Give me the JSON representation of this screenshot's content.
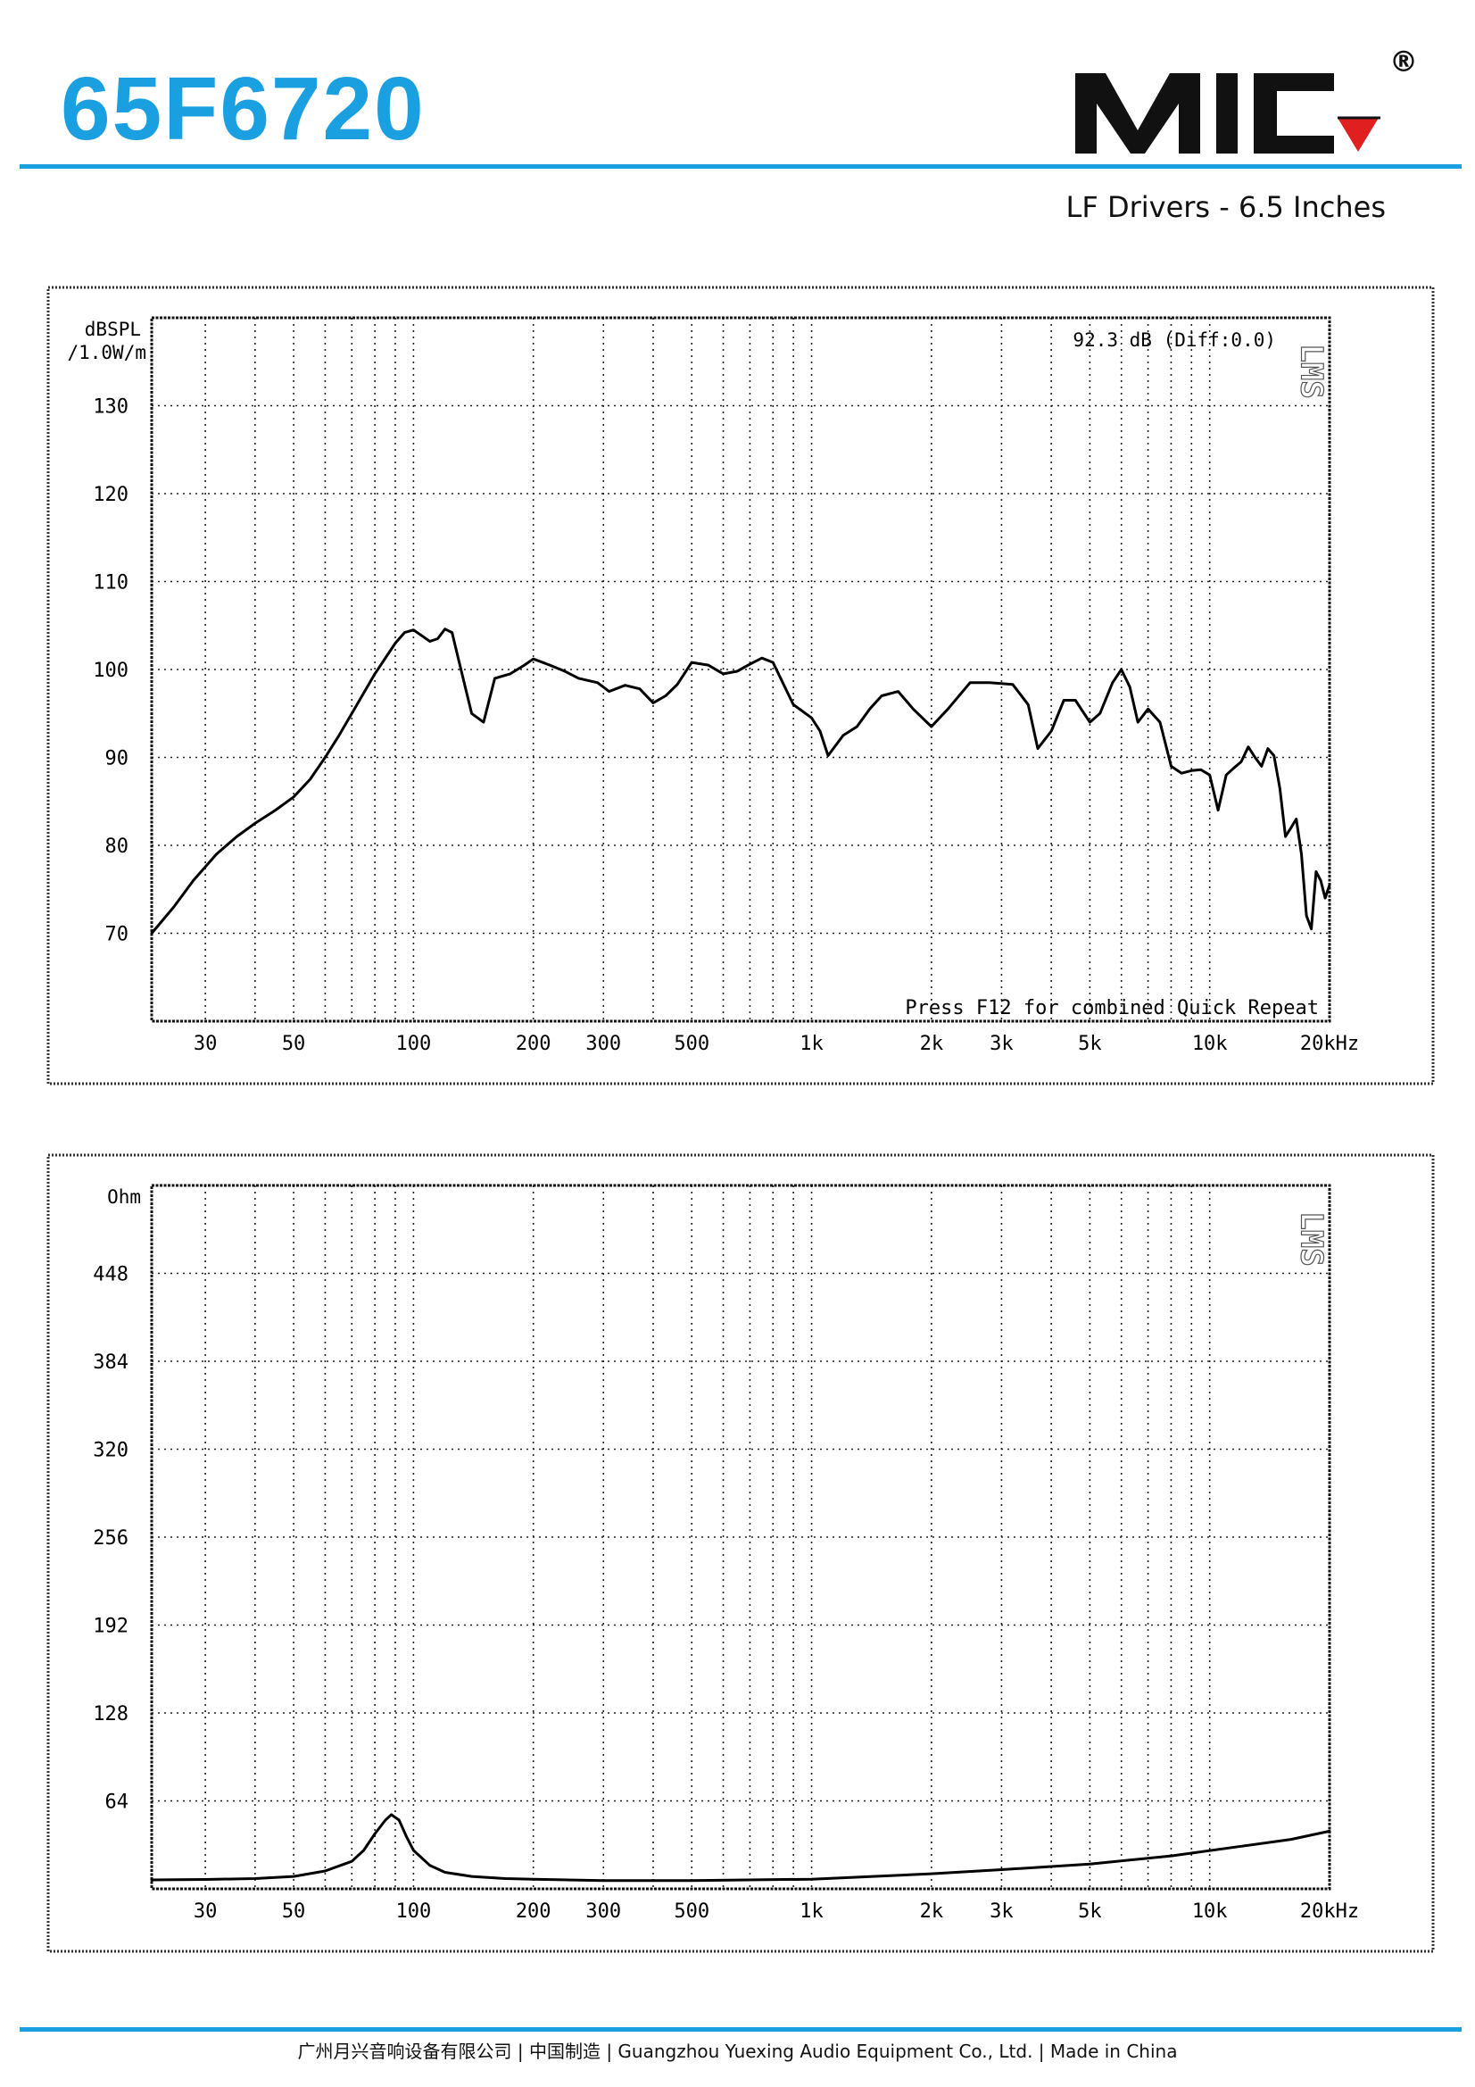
{
  "header": {
    "model": "65F6720",
    "subtitle": "LF Drivers - 6.5 Inches",
    "accent_color": "#1a9fe0",
    "logo": {
      "text": "MIC",
      "registered": "®",
      "accent_color": "#e02020"
    }
  },
  "footer": {
    "text": "广州月兴音响设备有限公司 | 中国制造 | Guangzhou Yuexing Audio Equipment Co., Ltd. | Made in China"
  },
  "chart_data": [
    {
      "type": "line",
      "name": "spl",
      "ylabel": "dBSPL",
      "ylabel2": "/1.0W/m",
      "x_scale": "log",
      "xlim": [
        22,
        20000
      ],
      "ylim": [
        60,
        140
      ],
      "x_ticks": [
        30,
        50,
        100,
        200,
        300,
        500,
        1000,
        2000,
        3000,
        5000,
        10000,
        20000
      ],
      "x_tick_labels": [
        "30",
        "50",
        "100",
        "200",
        "300",
        "500",
        "1k",
        "2k",
        "3k",
        "5k",
        "10k",
        "20kHz"
      ],
      "y_ticks": [
        70,
        80,
        90,
        100,
        110,
        120,
        130
      ],
      "y_tick_labels": [
        "70",
        "80",
        "90",
        "100",
        "110",
        "120",
        "130"
      ],
      "grid": true,
      "annotation_top": "92.3 dB (Diff:0.0)",
      "annotation_bottom": "Press F12 for combined Quick Repeat",
      "watermark": "LMS",
      "series": [
        {
          "x": [
            22,
            25,
            28,
            32,
            36,
            40,
            45,
            50,
            55,
            60,
            65,
            70,
            80,
            90,
            95,
            100,
            110,
            115,
            120,
            125,
            130,
            140,
            150,
            160,
            175,
            190,
            200,
            220,
            240,
            260,
            290,
            310,
            340,
            370,
            400,
            430,
            460,
            500,
            550,
            600,
            650,
            700,
            750,
            800,
            900,
            1000,
            1050,
            1100,
            1200,
            1300,
            1400,
            1500,
            1650,
            1800,
            2000,
            2200,
            2500,
            2800,
            3200,
            3500,
            3700,
            4000,
            4300,
            4600,
            5000,
            5300,
            5700,
            6000,
            6300,
            6600,
            7000,
            7500,
            8000,
            8500,
            9000,
            9500,
            10000,
            10500,
            11000,
            11500,
            12000,
            12500,
            13000,
            13500,
            14000,
            14500,
            15000,
            15500,
            16000,
            16500,
            17000,
            17500,
            18000,
            18500,
            19000,
            19500,
            20000
          ],
          "y": [
            70,
            73,
            76,
            79,
            81,
            82.5,
            84,
            85.5,
            87.5,
            90,
            92.5,
            95,
            99.5,
            103,
            104.2,
            104.5,
            103.2,
            103.5,
            104.6,
            104.2,
            101,
            95,
            94,
            99,
            99.5,
            100.5,
            101.2,
            100.5,
            99.8,
            99,
            98.5,
            97.5,
            98.2,
            97.8,
            96.2,
            97,
            98.3,
            100.8,
            100.5,
            99.5,
            99.8,
            100.6,
            101.3,
            100.8,
            96,
            94.5,
            93,
            90.2,
            92.5,
            93.5,
            95.5,
            97,
            97.5,
            95.5,
            93.5,
            95.5,
            98.5,
            98.5,
            98.3,
            96,
            91,
            93,
            96.5,
            96.5,
            94,
            95,
            98.5,
            100,
            98,
            94,
            95.5,
            94,
            89,
            88.2,
            88.5,
            88.6,
            88,
            84,
            88,
            88.8,
            89.5,
            91.2,
            90,
            89,
            91,
            90.2,
            86.5,
            81,
            82,
            83,
            79,
            72,
            70.5,
            77,
            76,
            74,
            75.5
          ]
        }
      ]
    },
    {
      "type": "line",
      "name": "impedance",
      "ylabel": "Ohm",
      "x_scale": "log",
      "xlim": [
        22,
        20000
      ],
      "ylim": [
        0,
        512
      ],
      "x_ticks": [
        30,
        50,
        100,
        200,
        300,
        500,
        1000,
        2000,
        3000,
        5000,
        10000,
        20000
      ],
      "x_tick_labels": [
        "30",
        "50",
        "100",
        "200",
        "300",
        "500",
        "1k",
        "2k",
        "3k",
        "5k",
        "10k",
        "20kHz"
      ],
      "y_ticks": [
        64,
        128,
        192,
        256,
        320,
        384,
        448
      ],
      "y_tick_labels": [
        "64",
        "128",
        "192",
        "256",
        "320",
        "384",
        "448"
      ],
      "grid": true,
      "watermark": "LMS",
      "series": [
        {
          "x": [
            22,
            30,
            40,
            50,
            60,
            70,
            75,
            80,
            85,
            88,
            92,
            96,
            100,
            110,
            120,
            140,
            170,
            200,
            300,
            500,
            1000,
            2000,
            3000,
            5000,
            8000,
            12000,
            16000,
            20000
          ],
          "y": [
            6.5,
            6.8,
            7.5,
            9,
            13,
            20,
            28,
            40,
            50,
            54,
            50,
            38,
            28,
            17,
            12,
            9,
            7.5,
            7,
            6,
            6,
            7,
            11,
            14,
            18,
            24,
            31,
            36,
            42
          ]
        }
      ]
    }
  ]
}
